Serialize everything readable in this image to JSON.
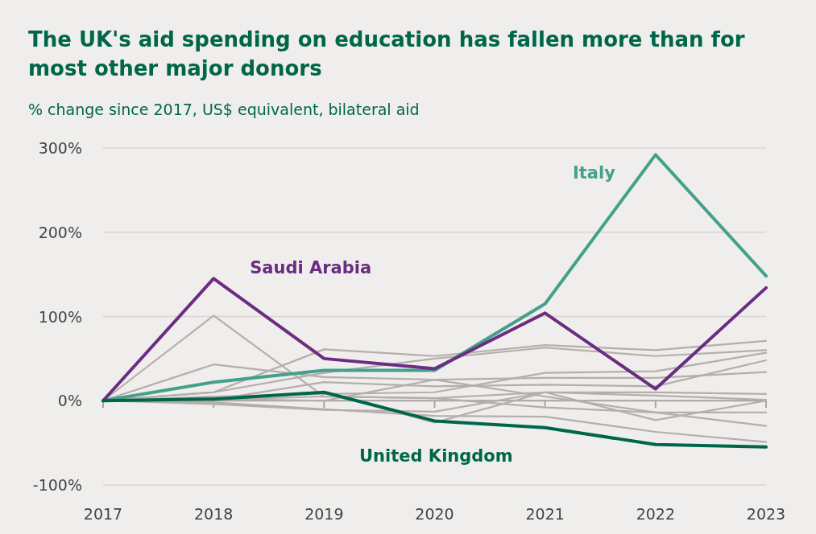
{
  "chart_data": {
    "type": "line",
    "title": "The UK's aid spending on education has fallen more than for most other major donors",
    "subtitle": "% change since 2017, US$ equivalent, bilateral aid",
    "x": [
      2017,
      2018,
      2019,
      2020,
      2021,
      2022,
      2023
    ],
    "xlim": [
      2017,
      2023
    ],
    "xticks": [
      2017,
      2018,
      2019,
      2020,
      2021,
      2022,
      2023
    ],
    "ylim": [
      -100,
      300
    ],
    "yticks": [
      {
        "value": -100,
        "label": "-100%"
      },
      {
        "value": 0,
        "label": "0%"
      },
      {
        "value": 100,
        "label": "100%"
      },
      {
        "value": 200,
        "label": "200%"
      },
      {
        "value": 300,
        "label": "300%"
      }
    ],
    "grid": "y",
    "marker": "none",
    "line_style": "solid",
    "series": [
      {
        "color": "#b5aeaa",
        "values": [
          0,
          10,
          61,
          53,
          66,
          60,
          71
        ]
      },
      {
        "color": "#b5aeaa",
        "values": [
          0,
          101,
          5,
          3,
          10,
          6,
          1
        ]
      },
      {
        "color": "#b5aeaa",
        "values": [
          0,
          43,
          28,
          25,
          27,
          27,
          34
        ]
      },
      {
        "color": "#b5aeaa",
        "values": [
          0,
          10,
          33,
          50,
          63,
          53,
          60
        ]
      },
      {
        "color": "#b5aeaa",
        "values": [
          0,
          1,
          22,
          17,
          19,
          17,
          48
        ]
      },
      {
        "color": "#b5aeaa",
        "values": [
          0,
          -4,
          -11,
          -13,
          10,
          10,
          8
        ]
      },
      {
        "color": "#b5aeaa",
        "values": [
          0,
          1,
          5,
          3,
          -8,
          -14,
          -30
        ]
      },
      {
        "color": "#b5aeaa",
        "values": [
          0,
          5,
          8,
          10,
          33,
          35,
          57
        ]
      },
      {
        "color": "#b5aeaa",
        "values": [
          0,
          -2,
          -10,
          -18,
          -19,
          -37,
          -49
        ]
      },
      {
        "color": "#b5aeaa",
        "values": [
          0,
          3,
          10,
          -26,
          10,
          -23,
          0
        ]
      },
      {
        "color": "#b5aeaa",
        "values": [
          0,
          2,
          0,
          25,
          5,
          -14,
          -14
        ]
      },
      {
        "name": "Italy",
        "color": "#43a08a",
        "values": [
          0,
          22,
          36,
          36,
          115,
          292,
          148
        ]
      },
      {
        "name": "Saudi Arabia",
        "color": "#6b2c82",
        "values": [
          0,
          145,
          50,
          38,
          104,
          14,
          134
        ]
      },
      {
        "name": "United Kingdom",
        "color": "#00664a",
        "values": [
          0,
          2,
          10,
          -24,
          -32,
          -52,
          -55
        ]
      }
    ]
  }
}
